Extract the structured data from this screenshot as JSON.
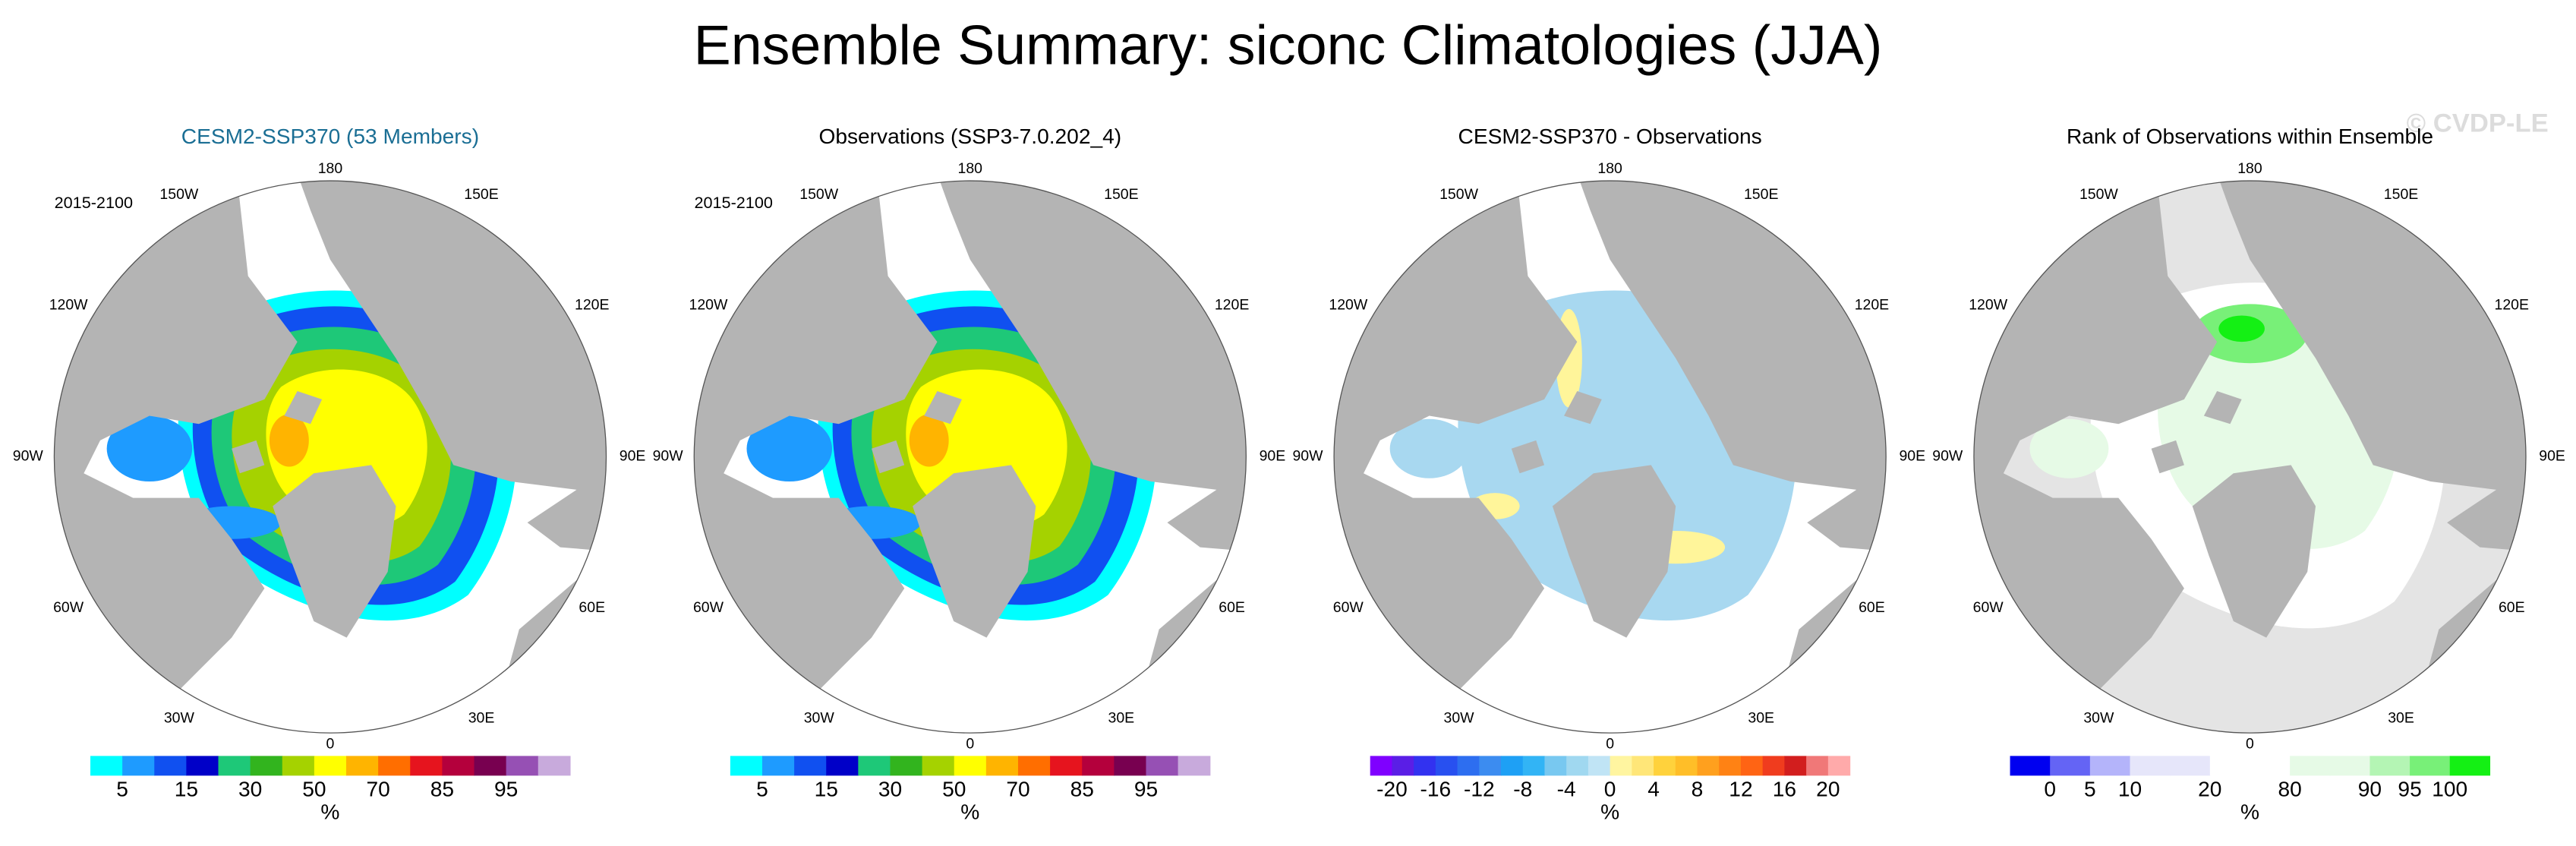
{
  "title": "Ensemble Summary: siconc Climatologies (JJA)",
  "watermark": "© CVDP-LE",
  "longitude_labels": [
    "180",
    "150E",
    "120E",
    "90E",
    "60E",
    "30E",
    "0",
    "30W",
    "60W",
    "90W",
    "120W",
    "150W"
  ],
  "panels": [
    {
      "title": "CESM2-SSP370 (53 Members)",
      "title_color": "#1a6e94",
      "period": "2015-2100",
      "colorbar": {
        "colors": [
          "#00ffff",
          "#1e9bff",
          "#1050f0",
          "#0000c8",
          "#1ec878",
          "#32b41e",
          "#a5d200",
          "#ffff00",
          "#ffb400",
          "#ff6e00",
          "#e6141e",
          "#b4003c",
          "#780050",
          "#9650b4",
          "#c8aadc"
        ],
        "labels": [
          5,
          null,
          15,
          null,
          30,
          null,
          50,
          null,
          70,
          null,
          85,
          null,
          95,
          null
        ],
        "unit": "%"
      }
    },
    {
      "title": "Observations (SSP3-7.0.202_4)",
      "title_color": "#000000",
      "period": "2015-2100",
      "colorbar": {
        "colors": [
          "#00ffff",
          "#1e9bff",
          "#1050f0",
          "#0000c8",
          "#1ec878",
          "#32b41e",
          "#a5d200",
          "#ffff00",
          "#ffb400",
          "#ff6e00",
          "#e6141e",
          "#b4003c",
          "#780050",
          "#9650b4",
          "#c8aadc"
        ],
        "labels": [
          5,
          null,
          15,
          null,
          30,
          null,
          50,
          null,
          70,
          null,
          85,
          null,
          95,
          null
        ],
        "unit": "%"
      }
    },
    {
      "title": "CESM2-SSP370 - Observations",
      "title_color": "#000000",
      "colorbar": {
        "colors": [
          "#7f00ff",
          "#5a1ee6",
          "#3232f0",
          "#2850f0",
          "#2d6ef0",
          "#3c8cf0",
          "#1ea0f5",
          "#32b4f5",
          "#78c8f0",
          "#a0d8f0",
          "#c0e4f5",
          "#fff5a0",
          "#ffe678",
          "#ffd23c",
          "#ffbe28",
          "#ffa01e",
          "#ff8214",
          "#ff6414",
          "#f03c1e",
          "#d21e1e",
          "#f07878",
          "#ffaaaa"
        ],
        "labels": [
          -20,
          null,
          -16,
          null,
          -12,
          null,
          -8,
          null,
          -4,
          null,
          0,
          null,
          4,
          null,
          8,
          null,
          12,
          null,
          16,
          null,
          20
        ],
        "unit": "%"
      }
    },
    {
      "title": "Rank of Observations within Ensemble",
      "title_color": "#000000",
      "colorbar": {
        "colors": [
          "#0000f0",
          "#6464f5",
          "#b4b4fa",
          "#e6e6fa",
          "#e6e6fa",
          "#ffffff",
          "#ffffff",
          "#e6fae6",
          "#e6fae6",
          "#b4f5b4",
          "#78f078",
          "#14f014"
        ],
        "labels": [
          0,
          5,
          10,
          null,
          20,
          null,
          80,
          null,
          90,
          95,
          100
        ],
        "unit": "%"
      }
    }
  ]
}
